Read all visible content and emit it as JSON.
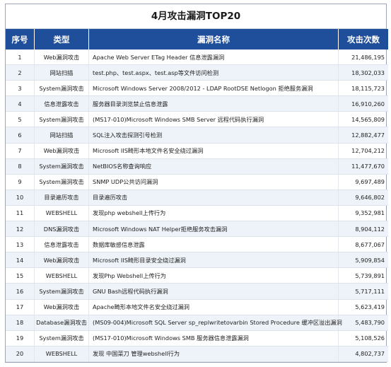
{
  "title": "4月攻击漏洞TOP20",
  "columns": {
    "rank": "序号",
    "type": "类型",
    "name": "漏洞名称",
    "count": "攻击次数"
  },
  "rows": [
    {
      "rank": "1",
      "type": "Web漏洞攻击",
      "name": "Apache Web Server ETag Header 信息泄露漏洞",
      "count": "21,486,195"
    },
    {
      "rank": "2",
      "type": "网站扫描",
      "name": "test.php、test.aspx、test.asp等文件访问检测",
      "count": "18,302,033"
    },
    {
      "rank": "3",
      "type": "System漏洞攻击",
      "name": "Microsoft Windows Server 2008/2012 - LDAP RootDSE Netlogon 拒绝服务漏洞",
      "count": "18,115,723"
    },
    {
      "rank": "4",
      "type": "信息泄露攻击",
      "name": "服务器目录浏览禁止信息泄露",
      "count": "16,910,260"
    },
    {
      "rank": "5",
      "type": "System漏洞攻击",
      "name": "(MS17-010)Microsoft Windows SMB Server 远程代码执行漏洞",
      "count": "14,565,809"
    },
    {
      "rank": "6",
      "type": "网站扫描",
      "name": "SQL注入攻击探测引号检测",
      "count": "12,882,477"
    },
    {
      "rank": "7",
      "type": "Web漏洞攻击",
      "name": "Microsoft IIS畸形本地文件名安全绕过漏洞",
      "count": "12,704,212"
    },
    {
      "rank": "8",
      "type": "System漏洞攻击",
      "name": "NetBIOS名称查询响应",
      "count": "11,477,670"
    },
    {
      "rank": "9",
      "type": "System漏洞攻击",
      "name": "SNMP UDP公共访问漏洞",
      "count": "9,697,489"
    },
    {
      "rank": "10",
      "type": "目录遍历攻击",
      "name": "目录遍历攻击",
      "count": "9,646,802"
    },
    {
      "rank": "11",
      "type": "WEBSHELL",
      "name": "发现php webshell上传行为",
      "count": "9,352,981"
    },
    {
      "rank": "12",
      "type": "DNS漏洞攻击",
      "name": "Microsoft Windows NAT Helper拒绝服务攻击漏洞",
      "count": "8,904,112"
    },
    {
      "rank": "13",
      "type": "信息泄露攻击",
      "name": "数据库敏感信息泄露",
      "count": "8,677,067"
    },
    {
      "rank": "14",
      "type": "Web漏洞攻击",
      "name": "Microsoft IIS畸形目录安全绕过漏洞",
      "count": "5,909,854"
    },
    {
      "rank": "15",
      "type": "WEBSHELL",
      "name": "发现Php Webshell上传行为",
      "count": "5,739,891"
    },
    {
      "rank": "16",
      "type": "System漏洞攻击",
      "name": "GNU Bash远程代码执行漏洞",
      "count": "5,717,111"
    },
    {
      "rank": "17",
      "type": "Web漏洞攻击",
      "name": "Apache畸形本地文件名安全绕过漏洞",
      "count": "5,623,419"
    },
    {
      "rank": "18",
      "type": "Database漏洞攻击",
      "name": "(MS09-004)Microsoft SQL Server sp_replwritetovarbin Stored Procedure 缓冲区溢出漏洞",
      "count": "5,483,790"
    },
    {
      "rank": "19",
      "type": "System漏洞攻击",
      "name": "(MS17-010)Microsoft Windows SMB 服务器信息泄露漏洞",
      "count": "5,108,526"
    },
    {
      "rank": "20",
      "type": "WEBSHELL",
      "name": "发现 中国菜刀 管理webshell行为",
      "count": "4,802,737"
    }
  ]
}
